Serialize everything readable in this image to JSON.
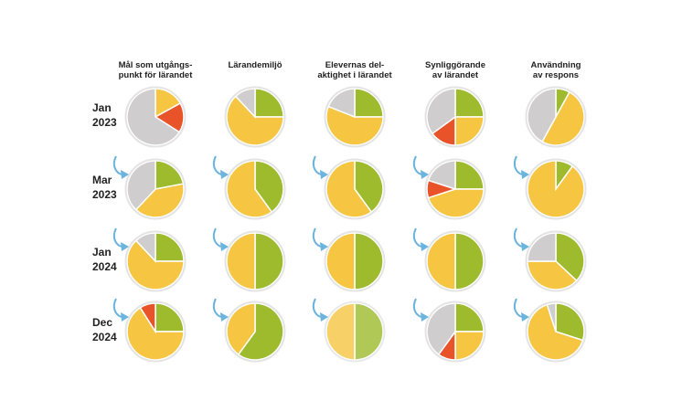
{
  "colors": {
    "green": "#9dbb2c",
    "yellow": "#f6c642",
    "red": "#e8532a",
    "grey": "#cfcdcd",
    "arrow": "#6bb4de"
  },
  "columns": [
    "Mål som utgångs-\npunkt för lärandet",
    "Lärandemiljö",
    "Elevernas del-\naktighet i lärandet",
    "Synliggörande\nav lärandet",
    "Användning\nav respons"
  ],
  "rows": [
    "Jan\n2023",
    "Mar\n2023",
    "Jan\n2024",
    "Dec\n2024"
  ],
  "chart_data": {
    "type": "pie",
    "series_order": [
      "green",
      "yellow",
      "red",
      "grey"
    ],
    "grid": [
      [
        {
          "green": 0,
          "yellow": 17,
          "red": 17,
          "grey": 66
        },
        {
          "green": 25,
          "yellow": 63,
          "red": 0,
          "grey": 12
        },
        {
          "green": 25,
          "yellow": 56,
          "red": 0,
          "grey": 19
        },
        {
          "green": 25,
          "yellow": 25,
          "red": 15,
          "grey": 35
        },
        {
          "green": 8,
          "yellow": 50,
          "red": 0,
          "grey": 42
        }
      ],
      [
        {
          "green": 22,
          "yellow": 40,
          "red": 0,
          "grey": 38
        },
        {
          "green": 40,
          "yellow": 60,
          "red": 0,
          "grey": 0
        },
        {
          "green": 40,
          "yellow": 60,
          "red": 0,
          "grey": 0
        },
        {
          "green": 25,
          "yellow": 45,
          "red": 10,
          "grey": 20
        },
        {
          "green": 10,
          "yellow": 90,
          "red": 0,
          "grey": 0
        }
      ],
      [
        {
          "green": 25,
          "yellow": 63,
          "red": 0,
          "grey": 12
        },
        {
          "green": 50,
          "yellow": 50,
          "red": 0,
          "grey": 0
        },
        {
          "green": 50,
          "yellow": 50,
          "red": 0,
          "grey": 0
        },
        {
          "green": 50,
          "yellow": 50,
          "red": 0,
          "grey": 0
        },
        {
          "green": 37,
          "yellow": 38,
          "red": 0,
          "grey": 25
        }
      ],
      [
        {
          "green": 25,
          "yellow": 66,
          "red": 9,
          "grey": 0
        },
        {
          "green": 60,
          "yellow": 40,
          "red": 0,
          "grey": 0
        },
        {
          "green": 50,
          "yellow": 50,
          "red": 0,
          "grey": 0,
          "faded": true
        },
        {
          "green": 25,
          "yellow": 25,
          "red": 10,
          "grey": 40
        },
        {
          "green": 30,
          "yellow": 65,
          "red": 0,
          "grey": 5
        }
      ]
    ]
  }
}
